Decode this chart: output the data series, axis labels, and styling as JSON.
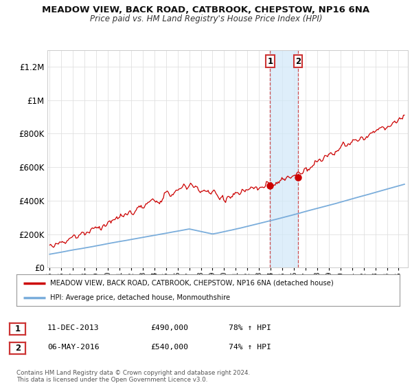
{
  "title": "MEADOW VIEW, BACK ROAD, CATBROOK, CHEPSTOW, NP16 6NA",
  "subtitle": "Price paid vs. HM Land Registry's House Price Index (HPI)",
  "legend_line1": "MEADOW VIEW, BACK ROAD, CATBROOK, CHEPSTOW, NP16 6NA (detached house)",
  "legend_line2": "HPI: Average price, detached house, Monmouthshire",
  "footnote": "Contains HM Land Registry data © Crown copyright and database right 2024.\nThis data is licensed under the Open Government Licence v3.0.",
  "sale1_date": "11-DEC-2013",
  "sale1_price": "£490,000",
  "sale1_hpi": "78% ↑ HPI",
  "sale2_date": "06-MAY-2016",
  "sale2_price": "£540,000",
  "sale2_hpi": "74% ↑ HPI",
  "sale1_year": 2013.95,
  "sale2_year": 2016.37,
  "sale1_price_val": 490000,
  "sale2_price_val": 540000,
  "red_color": "#cc0000",
  "blue_color": "#7aaddb",
  "shade_color": "#d0e8f8",
  "ylim_max": 1300000,
  "xlim_start": 1994.8,
  "xlim_end": 2025.8,
  "background_color": "#ffffff",
  "grid_color": "#e0e0e0",
  "yticks": [
    0,
    200000,
    400000,
    600000,
    800000,
    1000000,
    1200000
  ],
  "ytick_labels": [
    "£0",
    "£200K",
    "£400K",
    "£600K",
    "£800K",
    "£1M",
    "£1.2M"
  ]
}
